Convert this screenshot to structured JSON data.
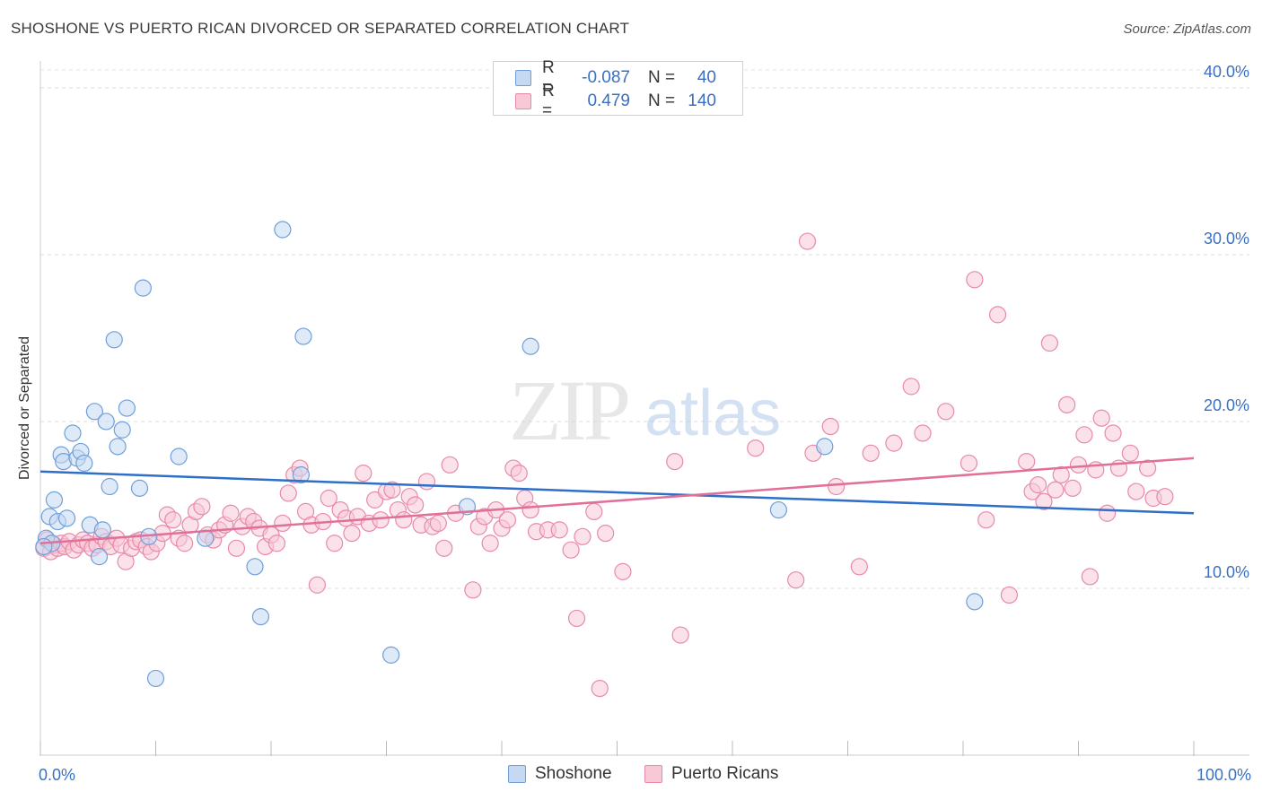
{
  "title": "SHOSHONE VS PUERTO RICAN DIVORCED OR SEPARATED CORRELATION CHART",
  "source": "Source: ZipAtlas.com",
  "watermark": {
    "zip": "ZIP",
    "atlas": "atlas"
  },
  "legend": {
    "rows": [
      {
        "r_label": "R =",
        "r_value": "-0.087",
        "n_label": "N =",
        "n_value": "40",
        "color": "#6f9fd8",
        "fill": "#c5d9f2"
      },
      {
        "r_label": "R =",
        "r_value": "0.479",
        "n_label": "N =",
        "n_value": "140",
        "color": "#e88aa8",
        "fill": "#f8c8d7"
      }
    ]
  },
  "chart_data": {
    "type": "scatter",
    "xlabel": "",
    "ylabel": "Divorced or Separated",
    "xlim": [
      0,
      100
    ],
    "ylim": [
      0,
      41.5
    ],
    "x_tick_labels": [
      {
        "value": 0,
        "label": "0.0%"
      },
      {
        "value": 100,
        "label": "100.0%"
      }
    ],
    "y_ticks": [
      {
        "value": 10,
        "label": "10.0%"
      },
      {
        "value": 20,
        "label": "20.0%"
      },
      {
        "value": 30,
        "label": "30.0%"
      },
      {
        "value": 40,
        "label": "40.0%"
      }
    ],
    "grid": true,
    "legend_position": "top-center",
    "series": [
      {
        "name": "Shoshone",
        "color": "#6f9fd8",
        "fill": "#c5d9f2",
        "line_color": "#2e6fc9",
        "trend": {
          "x": [
            0,
            100
          ],
          "y": [
            17.0,
            14.5
          ]
        },
        "points": [
          [
            0.5,
            13.0
          ],
          [
            0.8,
            14.3
          ],
          [
            1.0,
            12.7
          ],
          [
            1.2,
            15.3
          ],
          [
            1.5,
            14.0
          ],
          [
            1.8,
            18.0
          ],
          [
            2.0,
            17.6
          ],
          [
            2.3,
            14.2
          ],
          [
            2.8,
            19.3
          ],
          [
            3.2,
            17.8
          ],
          [
            3.5,
            18.2
          ],
          [
            3.8,
            17.5
          ],
          [
            4.3,
            13.8
          ],
          [
            4.7,
            20.6
          ],
          [
            5.1,
            11.9
          ],
          [
            5.4,
            13.5
          ],
          [
            5.7,
            20.0
          ],
          [
            6.0,
            16.1
          ],
          [
            6.4,
            24.9
          ],
          [
            6.7,
            18.5
          ],
          [
            7.1,
            19.5
          ],
          [
            7.5,
            20.8
          ],
          [
            8.6,
            16.0
          ],
          [
            8.9,
            28.0
          ],
          [
            9.4,
            13.1
          ],
          [
            10.0,
            4.6
          ],
          [
            12.0,
            17.9
          ],
          [
            14.3,
            13.0
          ],
          [
            18.6,
            11.3
          ],
          [
            19.1,
            8.3
          ],
          [
            21.0,
            31.5
          ],
          [
            22.6,
            16.8
          ],
          [
            22.8,
            25.1
          ],
          [
            30.4,
            6.0
          ],
          [
            37.0,
            14.9
          ],
          [
            42.5,
            24.5
          ],
          [
            64.0,
            14.7
          ],
          [
            68.0,
            18.5
          ],
          [
            81.0,
            9.2
          ],
          [
            0.3,
            12.5
          ]
        ]
      },
      {
        "name": "Puerto Ricans",
        "color": "#e88aa8",
        "fill": "#f8c8d7",
        "line_color": "#e0709a",
        "trend": {
          "x": [
            0,
            100
          ],
          "y": [
            12.7,
            17.8
          ]
        },
        "points": [
          [
            0.3,
            12.4
          ],
          [
            0.6,
            12.9
          ],
          [
            0.9,
            12.2
          ],
          [
            1.2,
            12.6
          ],
          [
            1.5,
            12.4
          ],
          [
            1.8,
            12.7
          ],
          [
            2.1,
            12.5
          ],
          [
            2.5,
            12.8
          ],
          [
            2.9,
            12.3
          ],
          [
            3.3,
            12.6
          ],
          [
            3.7,
            12.9
          ],
          [
            4.1,
            12.7
          ],
          [
            4.5,
            12.4
          ],
          [
            4.9,
            12.6
          ],
          [
            5.3,
            13.1
          ],
          [
            5.7,
            12.8
          ],
          [
            6.1,
            12.5
          ],
          [
            6.6,
            13.0
          ],
          [
            7.0,
            12.6
          ],
          [
            7.4,
            11.6
          ],
          [
            7.9,
            12.4
          ],
          [
            8.3,
            12.8
          ],
          [
            8.7,
            12.9
          ],
          [
            9.2,
            12.5
          ],
          [
            9.6,
            12.2
          ],
          [
            10.1,
            12.7
          ],
          [
            10.6,
            13.3
          ],
          [
            11.0,
            14.4
          ],
          [
            11.5,
            14.1
          ],
          [
            12.0,
            13.0
          ],
          [
            12.5,
            12.7
          ],
          [
            13.0,
            13.8
          ],
          [
            13.5,
            14.6
          ],
          [
            14.0,
            14.9
          ],
          [
            14.5,
            13.2
          ],
          [
            15.0,
            12.9
          ],
          [
            15.5,
            13.5
          ],
          [
            16.0,
            13.8
          ],
          [
            16.5,
            14.5
          ],
          [
            17.0,
            12.4
          ],
          [
            17.5,
            13.7
          ],
          [
            18.0,
            14.3
          ],
          [
            18.5,
            14.0
          ],
          [
            19.0,
            13.6
          ],
          [
            19.5,
            12.5
          ],
          [
            20.0,
            13.2
          ],
          [
            20.5,
            12.7
          ],
          [
            21.0,
            13.9
          ],
          [
            21.5,
            15.7
          ],
          [
            22.0,
            16.8
          ],
          [
            22.5,
            17.2
          ],
          [
            23.0,
            14.6
          ],
          [
            23.5,
            13.8
          ],
          [
            24.0,
            10.2
          ],
          [
            24.5,
            14.0
          ],
          [
            25.0,
            15.4
          ],
          [
            25.5,
            12.7
          ],
          [
            26.0,
            14.7
          ],
          [
            26.5,
            14.2
          ],
          [
            27.0,
            13.3
          ],
          [
            27.5,
            14.3
          ],
          [
            28.0,
            16.9
          ],
          [
            28.5,
            13.9
          ],
          [
            29.0,
            15.3
          ],
          [
            29.5,
            14.1
          ],
          [
            30.0,
            15.8
          ],
          [
            30.5,
            15.9
          ],
          [
            31.0,
            14.7
          ],
          [
            31.5,
            14.1
          ],
          [
            32.0,
            15.5
          ],
          [
            32.5,
            15.0
          ],
          [
            33.0,
            13.8
          ],
          [
            33.5,
            16.4
          ],
          [
            34.0,
            13.7
          ],
          [
            34.5,
            13.9
          ],
          [
            35.0,
            12.4
          ],
          [
            35.5,
            17.4
          ],
          [
            36.0,
            14.5
          ],
          [
            37.5,
            9.9
          ],
          [
            38.0,
            13.7
          ],
          [
            38.5,
            14.3
          ],
          [
            39.0,
            12.7
          ],
          [
            39.5,
            14.7
          ],
          [
            40.0,
            13.6
          ],
          [
            40.5,
            14.1
          ],
          [
            41.0,
            17.2
          ],
          [
            41.5,
            16.9
          ],
          [
            42.0,
            15.4
          ],
          [
            42.5,
            14.7
          ],
          [
            43.0,
            13.4
          ],
          [
            44.0,
            13.5
          ],
          [
            45.0,
            13.5
          ],
          [
            46.0,
            12.3
          ],
          [
            46.5,
            8.2
          ],
          [
            47.0,
            13.1
          ],
          [
            48.0,
            14.6
          ],
          [
            48.5,
            4.0
          ],
          [
            49.0,
            13.3
          ],
          [
            50.5,
            11.0
          ],
          [
            55.0,
            17.6
          ],
          [
            55.5,
            7.2
          ],
          [
            62.0,
            18.4
          ],
          [
            65.5,
            10.5
          ],
          [
            66.5,
            30.8
          ],
          [
            67.0,
            18.1
          ],
          [
            68.5,
            19.7
          ],
          [
            69.0,
            16.1
          ],
          [
            71.0,
            11.3
          ],
          [
            72.0,
            18.1
          ],
          [
            74.0,
            18.7
          ],
          [
            75.5,
            22.1
          ],
          [
            76.5,
            19.3
          ],
          [
            78.5,
            20.6
          ],
          [
            80.5,
            17.5
          ],
          [
            81.0,
            28.5
          ],
          [
            82.0,
            14.1
          ],
          [
            83.0,
            26.4
          ],
          [
            84.0,
            9.6
          ],
          [
            85.5,
            17.6
          ],
          [
            86.0,
            15.8
          ],
          [
            86.5,
            16.2
          ],
          [
            87.0,
            15.2
          ],
          [
            87.5,
            24.7
          ],
          [
            88.0,
            15.9
          ],
          [
            88.5,
            16.8
          ],
          [
            89.0,
            21.0
          ],
          [
            89.5,
            16.0
          ],
          [
            90.0,
            17.4
          ],
          [
            90.5,
            19.2
          ],
          [
            91.0,
            10.7
          ],
          [
            91.5,
            17.1
          ],
          [
            92.0,
            20.2
          ],
          [
            92.5,
            14.5
          ],
          [
            93.0,
            19.3
          ],
          [
            93.5,
            17.2
          ],
          [
            94.5,
            18.1
          ],
          [
            95.0,
            15.8
          ],
          [
            96.0,
            17.2
          ],
          [
            96.5,
            15.4
          ],
          [
            97.5,
            15.5
          ]
        ]
      }
    ]
  }
}
